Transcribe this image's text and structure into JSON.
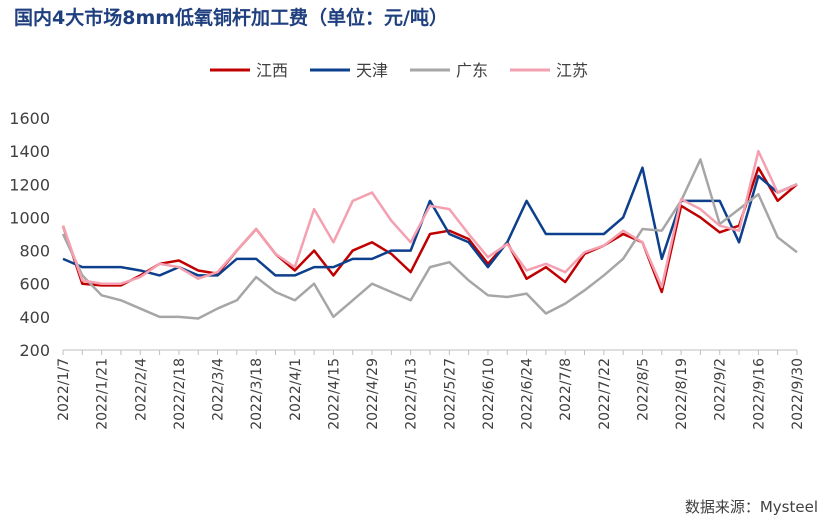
{
  "chart_data": {
    "type": "line",
    "title": "国内4大市场8mm低氧铜杆加工费（单位：元/吨）",
    "source": "数据来源：Mysteel",
    "categories": [
      "2022/1/7",
      null,
      "2022/1/21",
      null,
      "2022/2/4",
      null,
      "2022/2/18",
      null,
      "2022/3/4",
      null,
      "2022/3/18",
      null,
      "2022/4/1",
      null,
      "2022/4/15",
      null,
      "2022/4/29",
      null,
      "2022/5/13",
      null,
      "2022/5/27",
      null,
      "2022/6/10",
      null,
      "2022/6/24",
      null,
      "2022/7/8",
      null,
      "2022/7/22",
      null,
      "2022/8/5",
      null,
      "2022/8/19",
      null,
      "2022/9/2",
      null,
      "2022/9/16",
      null,
      "2022/9/30"
    ],
    "series": [
      {
        "name": "江西",
        "color": "#c00000",
        "values": [
          950,
          600,
          590,
          590,
          650,
          720,
          740,
          680,
          660,
          800,
          930,
          780,
          680,
          800,
          650,
          800,
          850,
          780,
          670,
          900,
          920,
          870,
          720,
          850,
          630,
          700,
          610,
          780,
          830,
          900,
          850,
          550,
          1070,
          1000,
          910,
          950,
          1300,
          1100,
          1200
        ]
      },
      {
        "name": "天津",
        "color": "#0c3f8c",
        "values": [
          750,
          700,
          700,
          700,
          680,
          650,
          700,
          650,
          650,
          750,
          750,
          650,
          650,
          700,
          700,
          750,
          750,
          800,
          800,
          1100,
          900,
          850,
          700,
          850,
          1100,
          900,
          900,
          900,
          900,
          1000,
          1300,
          750,
          1100,
          1100,
          1100,
          850,
          1250,
          1150,
          1200
        ]
      },
      {
        "name": "广东",
        "color": "#a6a6a6",
        "values": [
          900,
          650,
          530,
          500,
          450,
          400,
          400,
          390,
          450,
          500,
          640,
          550,
          500,
          600,
          400,
          500,
          600,
          550,
          500,
          700,
          730,
          620,
          530,
          520,
          540,
          420,
          480,
          560,
          650,
          750,
          930,
          920,
          1100,
          1350,
          960,
          1050,
          1140,
          880,
          790
        ]
      },
      {
        "name": "江苏",
        "color": "#f4a0b0",
        "values": [
          950,
          620,
          600,
          600,
          640,
          720,
          700,
          630,
          670,
          800,
          930,
          780,
          700,
          1050,
          850,
          1100,
          1150,
          980,
          850,
          1070,
          1050,
          900,
          760,
          840,
          680,
          720,
          670,
          790,
          830,
          920,
          850,
          580,
          1110,
          1050,
          950,
          920,
          1400,
          1150,
          1200
        ]
      }
    ],
    "ylim": [
      200,
      1600
    ],
    "yticks": [
      200,
      400,
      600,
      800,
      1000,
      1200,
      1400,
      1600
    ],
    "legend": "top"
  }
}
